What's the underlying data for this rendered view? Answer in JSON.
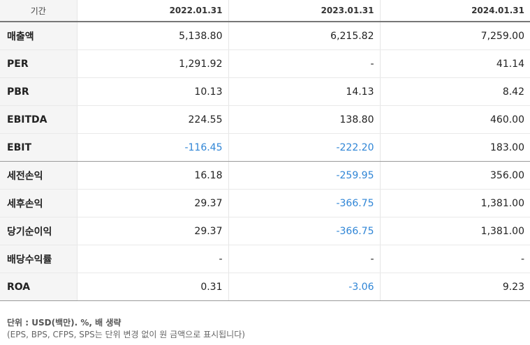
{
  "table": {
    "header": {
      "label": "기간",
      "periods": [
        "2022.01.31",
        "2023.01.31",
        "2024.01.31"
      ]
    },
    "rows": [
      {
        "label": "매출액",
        "values": [
          "5,138.80",
          "6,215.82",
          "7,259.00"
        ],
        "negative": [
          false,
          false,
          false
        ]
      },
      {
        "label": "PER",
        "values": [
          "1,291.92",
          "-",
          "41.14"
        ],
        "negative": [
          false,
          false,
          false
        ]
      },
      {
        "label": "PBR",
        "values": [
          "10.13",
          "14.13",
          "8.42"
        ],
        "negative": [
          false,
          false,
          false
        ]
      },
      {
        "label": "EBITDA",
        "values": [
          "224.55",
          "138.80",
          "460.00"
        ],
        "negative": [
          false,
          false,
          false
        ]
      },
      {
        "label": "EBIT",
        "values": [
          "-116.45",
          "-222.20",
          "183.00"
        ],
        "negative": [
          true,
          true,
          false
        ]
      },
      {
        "label": "세전손익",
        "values": [
          "16.18",
          "-259.95",
          "356.00"
        ],
        "negative": [
          false,
          true,
          false
        ]
      },
      {
        "label": "세후손익",
        "values": [
          "29.37",
          "-366.75",
          "1,381.00"
        ],
        "negative": [
          false,
          true,
          false
        ]
      },
      {
        "label": "당기순이익",
        "values": [
          "29.37",
          "-366.75",
          "1,381.00"
        ],
        "negative": [
          false,
          true,
          false
        ]
      },
      {
        "label": "배당수익률",
        "values": [
          "-",
          "-",
          "-"
        ],
        "negative": [
          false,
          false,
          false
        ]
      },
      {
        "label": "ROA",
        "values": [
          "0.31",
          "-3.06",
          "9.23"
        ],
        "negative": [
          false,
          true,
          false
        ]
      }
    ]
  },
  "footnote": {
    "unit": "단위 : USD(백만). %, 배 생략",
    "detail": "(EPS, BPS, CFPS, SPS는 단위 변경 없이 원 금액으로 표시됩니다)"
  },
  "colors": {
    "negative": "#2f85d6",
    "label_bg": "#f5f5f5"
  }
}
